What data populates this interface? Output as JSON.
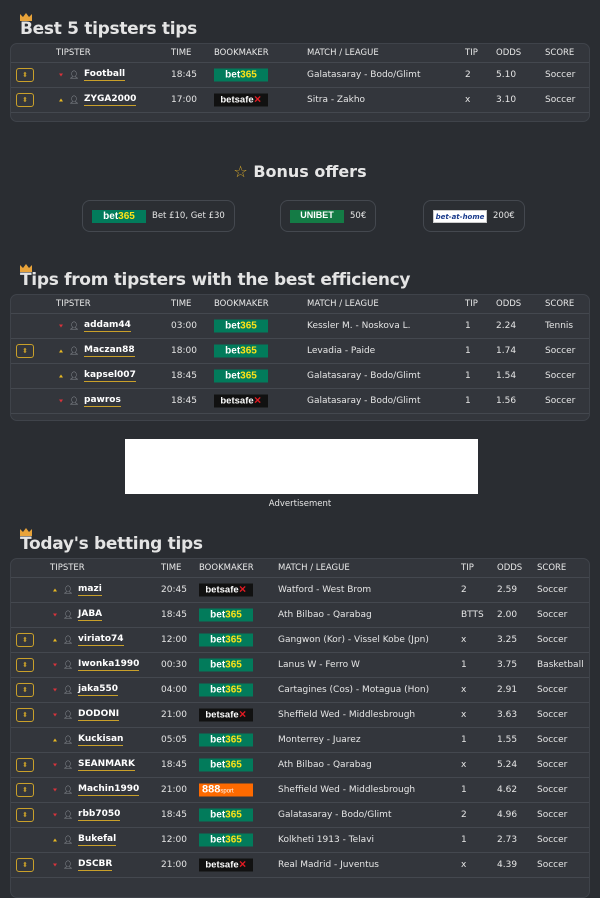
{
  "colors": {
    "accent": "#c9a02a",
    "up": "#e8b923",
    "down": "#d8333b",
    "bet365": "#027b5b",
    "unibet": "#147b45",
    "888": "#ff6a00"
  },
  "best5": {
    "title": "Best 5 tipsters tips",
    "headers": [
      "TIPSTER",
      "TIME",
      "BOOKMAKER",
      "MATCH / LEAGUE",
      "TIP",
      "ODDS",
      "SCORE"
    ],
    "rows": [
      {
        "expand": true,
        "trend": "down",
        "tipster": "Football",
        "time": "18:45",
        "bookmaker": "bet365",
        "match": "Galatasaray - Bodo/Glimt",
        "tip": "2",
        "odds": "5.10",
        "score": "Soccer"
      },
      {
        "expand": true,
        "trend": "up",
        "tipster": "ZYGA2000",
        "time": "17:00",
        "bookmaker": "betsafe",
        "match": "Sitra - Zakho",
        "tip": "x",
        "odds": "3.10",
        "score": "Soccer"
      }
    ]
  },
  "bonus": {
    "title": "Bonus offers",
    "icon": "star-icon",
    "offers": [
      {
        "bookmaker": "bet365",
        "text": "Bet £10, Get £30"
      },
      {
        "bookmaker": "UNIBET",
        "text": "50€"
      },
      {
        "bookmaker": "bet-at-home",
        "text": "200€"
      }
    ]
  },
  "efficiency": {
    "title": "Tips from tipsters with the best efficiency",
    "headers": [
      "TIPSTER",
      "TIME",
      "BOOKMAKER",
      "MATCH / LEAGUE",
      "TIP",
      "ODDS",
      "SCORE"
    ],
    "rows": [
      {
        "expand": false,
        "trend": "down",
        "tipster": "addam44",
        "time": "03:00",
        "bookmaker": "bet365",
        "match": "Kessler M. - Noskova L.",
        "tip": "1",
        "odds": "2.24",
        "score": "Tennis"
      },
      {
        "expand": true,
        "trend": "up",
        "tipster": "Maczan88",
        "time": "18:00",
        "bookmaker": "bet365",
        "match": "Levadia - Paide",
        "tip": "1",
        "odds": "1.74",
        "score": "Soccer"
      },
      {
        "expand": false,
        "trend": "up",
        "tipster": "kapsel007",
        "time": "18:45",
        "bookmaker": "bet365",
        "match": "Galatasaray - Bodo/Glimt",
        "tip": "1",
        "odds": "1.54",
        "score": "Soccer"
      },
      {
        "expand": false,
        "trend": "down",
        "tipster": "pawros",
        "time": "18:45",
        "bookmaker": "betsafe",
        "match": "Galatasaray - Bodo/Glimt",
        "tip": "1",
        "odds": "1.56",
        "score": "Soccer"
      }
    ]
  },
  "ad": {
    "label": "Advertisement"
  },
  "today": {
    "title": "Today's betting tips",
    "headers": [
      "TIPSTER",
      "TIME",
      "BOOKMAKER",
      "MATCH / LEAGUE",
      "TIP",
      "ODDS",
      "SCORE"
    ],
    "rows": [
      {
        "expand": false,
        "trend": "up",
        "tipster": "mazi",
        "time": "20:45",
        "bookmaker": "betsafe",
        "match": "Watford - West Brom",
        "tip": "2",
        "odds": "2.59",
        "score": "Soccer"
      },
      {
        "expand": false,
        "trend": "down",
        "tipster": "JABA",
        "time": "18:45",
        "bookmaker": "bet365",
        "match": "Ath Bilbao - Qarabag",
        "tip": "BTTS",
        "odds": "2.00",
        "score": "Soccer"
      },
      {
        "expand": true,
        "trend": "up",
        "tipster": "viriato74",
        "time": "12:00",
        "bookmaker": "bet365",
        "match": "Gangwon (Kor) - Vissel Kobe (Jpn)",
        "tip": "x",
        "odds": "3.25",
        "score": "Soccer"
      },
      {
        "expand": true,
        "trend": "down",
        "tipster": "Iwonka1990",
        "time": "00:30",
        "bookmaker": "bet365",
        "match": "Lanus W - Ferro W",
        "tip": "1",
        "odds": "3.75",
        "score": "Basketball"
      },
      {
        "expand": true,
        "trend": "down",
        "tipster": "jaka550",
        "time": "04:00",
        "bookmaker": "bet365",
        "match": "Cartagines (Cos) - Motagua (Hon)",
        "tip": "x",
        "odds": "2.91",
        "score": "Soccer"
      },
      {
        "expand": true,
        "trend": "down",
        "tipster": "DODONI",
        "time": "21:00",
        "bookmaker": "betsafe",
        "match": "Sheffield Wed - Middlesbrough",
        "tip": "x",
        "odds": "3.63",
        "score": "Soccer"
      },
      {
        "expand": false,
        "trend": "up",
        "tipster": "Kuckisan",
        "time": "05:05",
        "bookmaker": "bet365",
        "match": "Monterrey - Juarez",
        "tip": "1",
        "odds": "1.55",
        "score": "Soccer"
      },
      {
        "expand": true,
        "trend": "down",
        "tipster": "SEANMARK",
        "time": "18:45",
        "bookmaker": "bet365",
        "match": "Ath Bilbao - Qarabag",
        "tip": "x",
        "odds": "5.24",
        "score": "Soccer"
      },
      {
        "expand": true,
        "trend": "down",
        "tipster": "Machin1990",
        "time": "21:00",
        "bookmaker": "888sport",
        "match": "Sheffield Wed - Middlesbrough",
        "tip": "1",
        "odds": "4.62",
        "score": "Soccer"
      },
      {
        "expand": true,
        "trend": "down",
        "tipster": "rbb7050",
        "time": "18:45",
        "bookmaker": "bet365",
        "match": "Galatasaray - Bodo/Glimt",
        "tip": "2",
        "odds": "4.96",
        "score": "Soccer"
      },
      {
        "expand": false,
        "trend": "up",
        "tipster": "Bukefal",
        "time": "12:00",
        "bookmaker": "bet365",
        "match": "Kolkheti 1913 - Telavi",
        "tip": "1",
        "odds": "2.73",
        "score": "Soccer"
      },
      {
        "expand": true,
        "trend": "down",
        "tipster": "DSCBR",
        "time": "21:00",
        "bookmaker": "betsafe",
        "match": "Real Madrid - Juventus",
        "tip": "x",
        "odds": "4.39",
        "score": "Soccer"
      }
    ]
  }
}
